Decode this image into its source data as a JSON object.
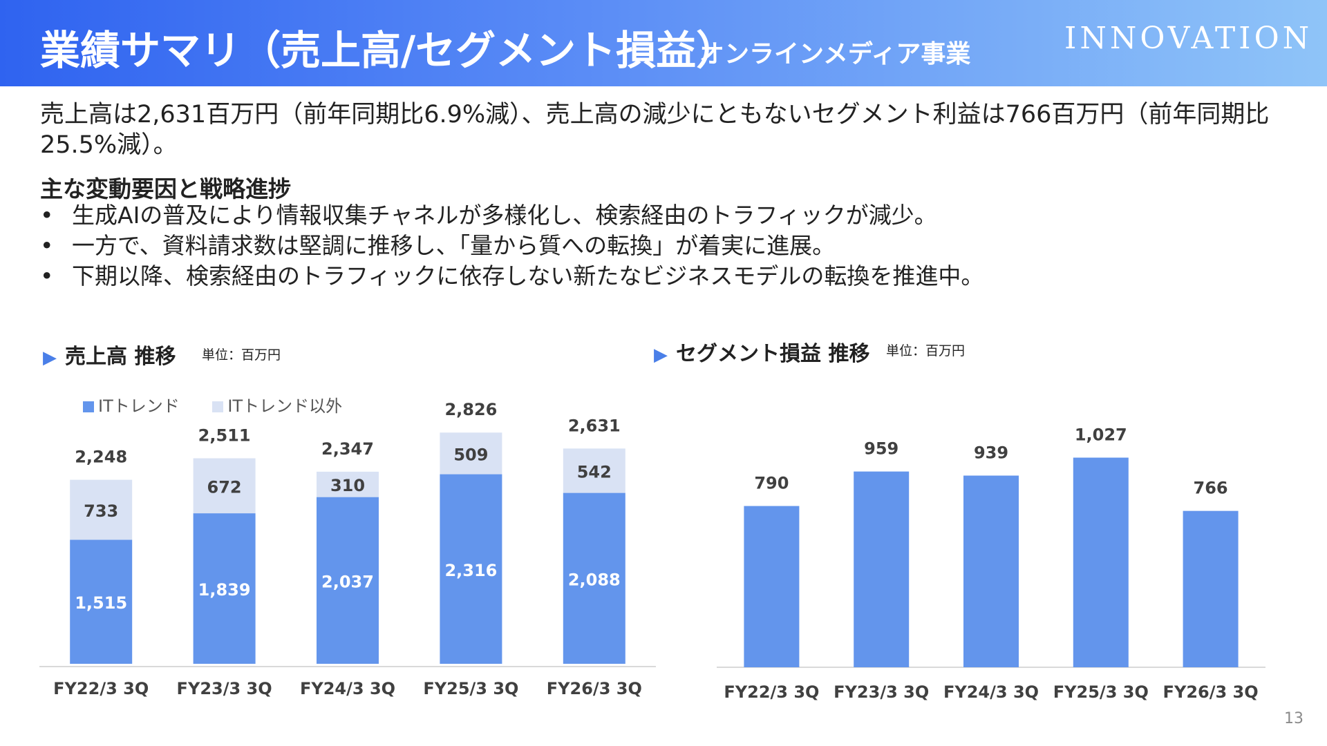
{
  "header": {
    "title": "業績サマリ（売上高/セグメント損益）",
    "subtitle": "オンラインメディア事業",
    "logo": "INNOVATION"
  },
  "summary": "売上高は2,631百万円（前年同期比6.9%減）、売上高の減少にともないセグメント利益は766百万円（前年同期比25.5%減）。",
  "factors": {
    "title": "主な変動要因と戦略進捗",
    "bullet_char": "•",
    "items": [
      "生成AIの普及により情報収集チャネルが多様化し、検索経由のトラフィックが減少。",
      "一方で、資料請求数は堅調に推移し、「量から質への転換」が着実に進展。",
      "下期以降、検索経由のトラフィックに依存しない新たなビジネスモデルの転換を推進中。"
    ]
  },
  "sales_section": {
    "marker": "▶",
    "title": "売上高 推移",
    "unit": "単位：百万円"
  },
  "profit_section": {
    "marker": "▶",
    "title": "セグメント損益 推移",
    "unit": "単位：百万円"
  },
  "page_number": "13",
  "colors": {
    "primary": "#6395ec",
    "secondary": "#d9e2f4",
    "axis": "#d9d9d9",
    "accent": "#4a7fe8"
  },
  "chart_data": [
    {
      "type": "bar",
      "stacked": true,
      "title": "売上高 推移",
      "unit": "単位：百万円",
      "categories": [
        "FY22/3 3Q",
        "FY23/3 3Q",
        "FY24/3 3Q",
        "FY25/3 3Q",
        "FY26/3 3Q"
      ],
      "series": [
        {
          "name": "ITトレンド",
          "values": [
            1515,
            1839,
            2037,
            2316,
            2088
          ]
        },
        {
          "name": "ITトレンド以外",
          "values": [
            733,
            672,
            310,
            509,
            542
          ]
        }
      ],
      "value_labels": [
        [
          "1,515",
          "1,839",
          "2,037",
          "2,316",
          "2,088"
        ],
        [
          "733",
          "672",
          "310",
          "509",
          "542"
        ]
      ],
      "totals": [
        2248,
        2511,
        2347,
        2826,
        2631
      ],
      "total_labels": [
        "2,248",
        "2,511",
        "2,347",
        "2,826",
        "2,631"
      ],
      "ylim": [
        0,
        3200
      ],
      "legend": "top-left"
    },
    {
      "type": "bar",
      "title": "セグメント損益 推移",
      "unit": "単位：百万円",
      "categories": [
        "FY22/3 3Q",
        "FY23/3 3Q",
        "FY24/3 3Q",
        "FY25/3 3Q",
        "FY26/3 3Q"
      ],
      "values": [
        790,
        959,
        939,
        1027,
        766
      ],
      "value_labels": [
        "790",
        "959",
        "939",
        "1,027",
        "766"
      ],
      "ylim": [
        0,
        1160
      ]
    }
  ]
}
